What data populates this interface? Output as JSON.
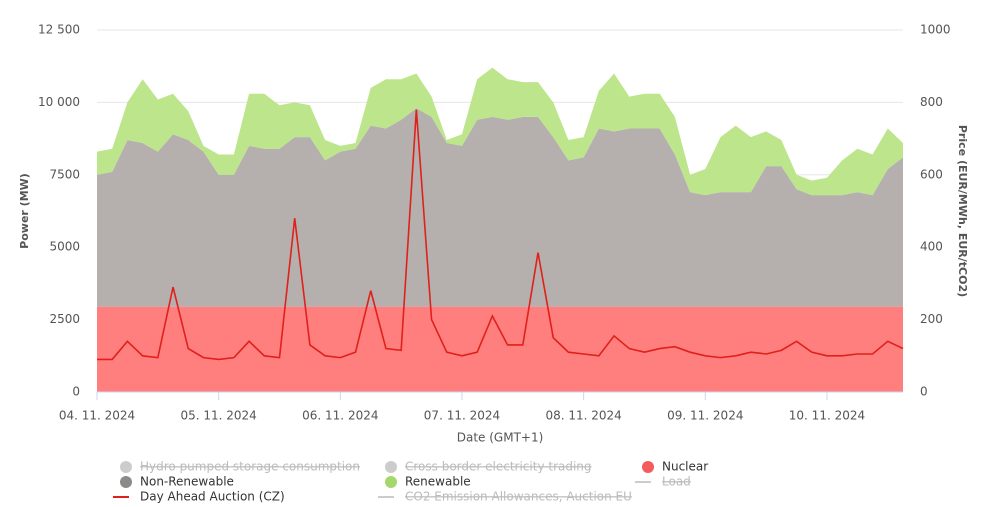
{
  "chart_data": {
    "type": "stacked-area-line",
    "categories": [
      "04. 11. 2024",
      null,
      null,
      null,
      null,
      null,
      null,
      null,
      "05. 11. 2024",
      null,
      null,
      null,
      null,
      null,
      null,
      null,
      "06. 11. 2024",
      null,
      null,
      null,
      null,
      null,
      null,
      null,
      "07. 11. 2024",
      null,
      null,
      null,
      null,
      null,
      null,
      null,
      "08. 11. 2024",
      null,
      null,
      null,
      null,
      null,
      null,
      null,
      "09. 11. 2024",
      null,
      null,
      null,
      null,
      null,
      null,
      null,
      "10. 11. 2024",
      null,
      null,
      null,
      null,
      null
    ],
    "x_label": "Date (GMT+1)",
    "y_label": "Power (MW)",
    "y2_label": "Price (EUR/MWh, EUR/tCO2)",
    "ylim": [
      0,
      12500
    ],
    "yticks": [
      0,
      2500,
      5000,
      7500,
      {
        "value": 10000,
        "label": "10 000"
      },
      {
        "value": 12500,
        "label": "12 500"
      }
    ],
    "y2lim": [
      0,
      1000
    ],
    "y2ticks": [
      0,
      200,
      400,
      600,
      800,
      1000
    ],
    "grid": true,
    "series": [
      {
        "name": "Nuclear",
        "color": "#ff7f7f",
        "legend_color": "#f45b5b",
        "stack": true,
        "values": [
          2950,
          2950,
          2950,
          2950,
          2950,
          2950,
          2950,
          2950,
          2950,
          2950,
          2950,
          2950,
          2950,
          2950,
          2950,
          2950,
          2950,
          2950,
          2950,
          2950,
          2950,
          2950,
          2950,
          2950,
          2950,
          2950,
          2950,
          2950,
          2950,
          2950,
          2950,
          2950,
          2950,
          2950,
          2950,
          2950,
          2950,
          2950,
          2950,
          2950,
          2950,
          2950,
          2950,
          2950,
          2950,
          2950,
          2950,
          2950,
          2950,
          2950,
          2950,
          2950,
          2950,
          2950
        ]
      },
      {
        "name": "Non-Renewable",
        "color": "#b5b0ad",
        "legend_color": "#8d8a88",
        "stack": true,
        "values": [
          4550,
          4650,
          5750,
          5650,
          5350,
          5950,
          5750,
          5350,
          4550,
          4550,
          5550,
          5450,
          5450,
          5850,
          5850,
          5050,
          5350,
          5450,
          6250,
          6150,
          6450,
          6850,
          6550,
          5650,
          5550,
          6450,
          6550,
          6450,
          6550,
          6550,
          5850,
          5050,
          5150,
          6150,
          6050,
          6150,
          6150,
          6150,
          5250,
          3950,
          3850,
          3950,
          3950,
          3950,
          4850,
          4850,
          4050,
          3850,
          3850,
          3850,
          3950,
          3850,
          4750,
          5150
        ]
      },
      {
        "name": "Renewable",
        "color": "#bde58c",
        "legend_color": "#a5d86c",
        "stack": true,
        "values": [
          800,
          800,
          1300,
          2200,
          1800,
          1400,
          1000,
          200,
          700,
          700,
          1800,
          1900,
          1500,
          1200,
          1100,
          700,
          200,
          200,
          1300,
          1700,
          1400,
          1200,
          700,
          100,
          400,
          1400,
          1700,
          1400,
          1200,
          1200,
          1200,
          700,
          700,
          1300,
          2000,
          1100,
          1200,
          1200,
          1300,
          600,
          900,
          1900,
          2300,
          1900,
          1200,
          900,
          500,
          500,
          600,
          1200,
          1500,
          1400,
          1400,
          500
        ]
      },
      {
        "name": "Day Ahead Auction (CZ)",
        "color": "#e0201a",
        "axis": "y2",
        "line": true,
        "values": [
          90,
          90,
          140,
          100,
          95,
          290,
          120,
          95,
          90,
          95,
          140,
          100,
          95,
          480,
          130,
          100,
          95,
          110,
          280,
          120,
          115,
          780,
          200,
          110,
          100,
          110,
          210,
          130,
          130,
          385,
          150,
          110,
          105,
          100,
          155,
          120,
          110,
          120,
          125,
          110,
          100,
          95,
          100,
          110,
          105,
          115,
          140,
          110,
          100,
          100,
          105,
          105,
          140,
          120
        ]
      }
    ],
    "hidden_series": [
      {
        "name": "Hydro pumped storage consumption",
        "symbol": "dot"
      },
      {
        "name": "Cross border electricity trading",
        "symbol": "dot"
      },
      {
        "name": "Load",
        "symbol": "line"
      },
      {
        "name": "CO2 Emission Allowances, Auction EU",
        "symbol": "line"
      }
    ]
  }
}
